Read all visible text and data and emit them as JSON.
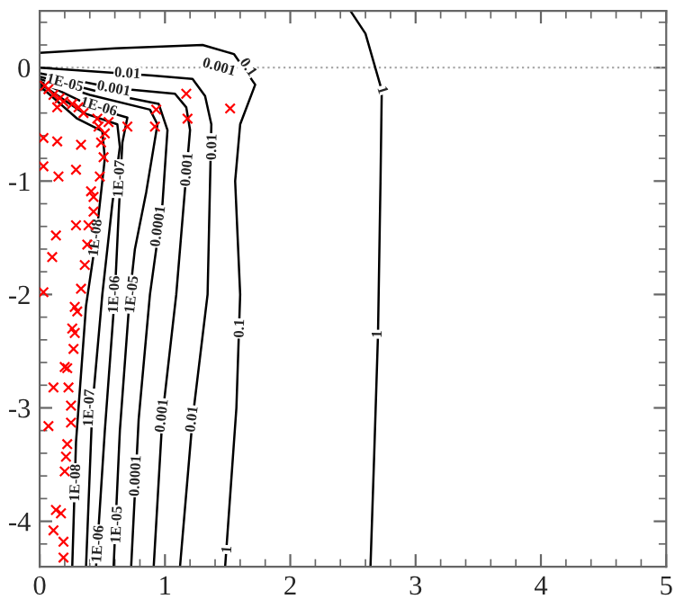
{
  "chart_data": {
    "type": "line",
    "xlim": [
      0,
      5
    ],
    "ylim": [
      -4.4,
      0.5
    ],
    "xticks": [
      0,
      1,
      2,
      3,
      4,
      5
    ],
    "yticks": [
      0,
      -1,
      -2,
      -3,
      -4
    ],
    "grid": false,
    "ref_lines": [
      {
        "axis": "y",
        "value": 0,
        "color": "#aaaaaa",
        "line_style": "dotted"
      }
    ],
    "series": [
      {
        "color": "#000000",
        "x": [
          2.48,
          2.6,
          2.73,
          2.72,
          2.7,
          2.67,
          2.64
        ],
        "values": [
          0.5,
          0.3,
          -0.2,
          -1.0,
          -2.35,
          -3.4,
          -4.4
        ]
      },
      {
        "color": "#000000",
        "x": [
          0,
          0.6,
          1.3,
          1.55,
          1.72,
          1.6,
          1.56,
          1.6,
          1.57,
          1.48
        ],
        "values": [
          0.13,
          0.17,
          0.2,
          0.12,
          -0.15,
          -0.5,
          -1.0,
          -2.0,
          -3.0,
          -4.4
        ]
      },
      {
        "color": "#000000",
        "x": [
          0,
          0.9,
          1.22,
          1.32,
          1.37,
          1.36,
          1.34,
          1.22,
          1.12
        ],
        "values": [
          0.0,
          -0.07,
          -0.1,
          -0.25,
          -0.5,
          -1.0,
          -2.0,
          -3.1,
          -4.4
        ]
      },
      {
        "color": "#000000",
        "x": [
          0,
          0.6,
          1.08,
          1.17,
          1.2,
          1.15,
          1.09,
          0.98,
          0.91
        ],
        "values": [
          -0.05,
          -0.18,
          -0.23,
          -0.35,
          -0.55,
          -1.2,
          -2.0,
          -3.07,
          -4.4
        ]
      },
      {
        "color": "#000000",
        "x": [
          0,
          0.5,
          0.95,
          1.02,
          0.98,
          0.88,
          0.79,
          0.73
        ],
        "values": [
          -0.08,
          -0.22,
          -0.32,
          -0.55,
          -1.2,
          -2.0,
          -3.1,
          -4.4
        ]
      },
      {
        "color": "#000000",
        "x": [
          0,
          0.4,
          0.88,
          0.94,
          0.85,
          0.76,
          0.72,
          0.64,
          0.59
        ],
        "values": [
          -0.1,
          -0.24,
          -0.37,
          -0.5,
          -1.1,
          -1.6,
          -2.0,
          -3.2,
          -4.4
        ]
      },
      {
        "color": "#000000",
        "x": [
          0,
          0.45,
          0.7,
          0.66,
          0.63,
          0.6,
          0.52,
          0.45
        ],
        "values": [
          -0.12,
          -0.36,
          -0.44,
          -0.66,
          -1.3,
          -2.0,
          -3.2,
          -4.4
        ]
      },
      {
        "color": "#000000",
        "x": [
          0,
          0.35,
          0.62,
          0.64,
          0.58,
          0.5,
          0.42,
          0.37
        ],
        "values": [
          -0.14,
          -0.4,
          -0.5,
          -0.7,
          -1.2,
          -2.0,
          -3.0,
          -4.4
        ]
      },
      {
        "color": "#000000",
        "x": [
          0,
          0.3,
          0.5,
          0.52,
          0.45,
          0.37,
          0.29,
          0.26
        ],
        "values": [
          -0.16,
          -0.45,
          -0.56,
          -0.8,
          -1.5,
          -2.1,
          -3.3,
          -4.4
        ]
      },
      {
        "type": "scatter",
        "color": "#ff0000",
        "marker": "cross",
        "x": [
          1.17,
          1.52,
          0.93,
          1.18,
          0.92,
          0.7,
          0.55,
          0.47,
          0.35,
          0.31,
          0.26,
          0.16,
          0.14,
          0.11,
          0.07,
          0.04,
          0.19,
          0.46,
          0.52,
          0.49,
          0.14,
          0.03,
          0.33,
          0.51,
          0.29,
          0.03,
          0.15,
          0.48,
          0.41,
          0.43,
          0.43,
          0.39,
          0.29,
          0.13,
          0.38,
          0.1,
          0.36,
          0.03,
          0.33,
          0.28,
          0.3,
          0.26,
          0.28,
          0.27,
          0.2,
          0.22,
          0.11,
          0.23,
          0.25,
          0.07,
          0.25,
          0.22,
          0.21,
          0.2,
          0.13,
          0.17,
          0.11,
          0.19,
          0.19
        ],
        "values": [
          -0.23,
          -0.36,
          -0.37,
          -0.45,
          -0.52,
          -0.52,
          -0.48,
          -0.52,
          -0.4,
          -0.35,
          -0.32,
          -0.27,
          -0.35,
          -0.24,
          -0.19,
          -0.16,
          -0.3,
          -0.45,
          -0.58,
          -0.66,
          -0.65,
          -0.62,
          -0.68,
          -0.79,
          -0.9,
          -0.87,
          -0.96,
          -0.96,
          -1.09,
          -1.14,
          -1.27,
          -1.39,
          -1.39,
          -1.48,
          -1.56,
          -1.67,
          -1.74,
          -1.98,
          -1.95,
          -2.11,
          -2.15,
          -2.3,
          -2.34,
          -2.48,
          -2.64,
          -2.65,
          -2.82,
          -2.82,
          -2.98,
          -3.16,
          -3.13,
          -3.32,
          -3.43,
          -3.56,
          -3.9,
          -3.93,
          -4.08,
          -4.18,
          -4.32
        ]
      }
    ],
    "annotations": [
      {
        "text": "1",
        "x": 2.73,
        "y": -0.2
      },
      {
        "text": "1",
        "x": 2.7,
        "y": -2.35
      },
      {
        "text": "1",
        "x": 1.5,
        "y": -4.25
      },
      {
        "text": "0.1",
        "x": 1.66,
        "y": 0.0
      },
      {
        "text": "0.1",
        "x": 1.6,
        "y": -2.3
      },
      {
        "text": "0.01",
        "x": 0.7,
        "y": -0.055
      },
      {
        "text": "0.01",
        "x": 1.38,
        "y": -0.7
      },
      {
        "text": "0.01",
        "x": 1.22,
        "y": -3.1
      },
      {
        "text": "0.001",
        "x": 1.43,
        "y": 0.0
      },
      {
        "text": "0.001",
        "x": 0.59,
        "y": -0.19
      },
      {
        "text": "0.001",
        "x": 1.18,
        "y": -0.9
      },
      {
        "text": "0.001",
        "x": 0.98,
        "y": -3.07
      },
      {
        "text": "0.0001",
        "x": 0.95,
        "y": -1.4
      },
      {
        "text": "0.0001",
        "x": 0.77,
        "y": -3.6
      },
      {
        "text": "1E-05",
        "x": 0.2,
        "y": -0.14
      },
      {
        "text": "1E-05",
        "x": 0.74,
        "y": -2.0
      },
      {
        "text": "1E-05",
        "x": 0.62,
        "y": -4.03
      },
      {
        "text": "1E-06",
        "x": 0.47,
        "y": -0.35
      },
      {
        "text": "1E-06",
        "x": 0.6,
        "y": -2.0
      },
      {
        "text": "1E-06",
        "x": 0.47,
        "y": -4.2
      },
      {
        "text": "1E-07",
        "x": 0.64,
        "y": -0.98
      },
      {
        "text": "1E-07",
        "x": 0.4,
        "y": -3.0
      },
      {
        "text": "1E-08",
        "x": 0.45,
        "y": -1.5
      },
      {
        "text": "1E-08",
        "x": 0.29,
        "y": -3.66
      }
    ]
  }
}
